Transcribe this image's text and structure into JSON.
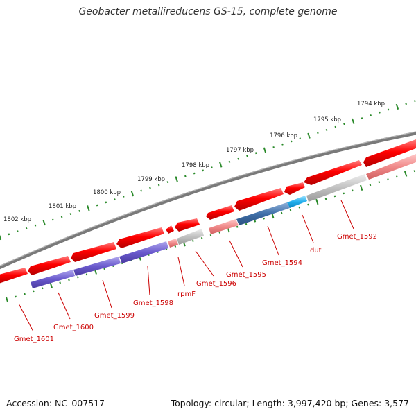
{
  "title": "Geobacter metallireducens GS-15, complete genome",
  "footer": {
    "accession": "Accession: NC_007517",
    "summary": "Topology: circular; Length: 3,997,420 bp; Genes: 3,577"
  },
  "scale_labels": [
    "1794 kbp",
    "1795 kbp",
    "1796 kbp",
    "1797 kbp",
    "1798 kbp",
    "1799 kbp",
    "1800 kbp",
    "1801 kbp",
    "1802 kbp"
  ],
  "gene_labels": [
    "Gmet_1592",
    "dut",
    "Gmet_1594",
    "Gmet_1595",
    "Gmet_1596",
    "rpmF",
    "Gmet_1598",
    "Gmet_1599",
    "Gmet_1600",
    "Gmet_1601"
  ],
  "colors": {
    "cds": "#ff0000",
    "backbone": "#777777",
    "tick": "#2a8a2a",
    "label": "#cc0000",
    "feature_pink": "#f08a8a",
    "feature_grey": "#c0c0c0",
    "feature_blue": "#3f6fa8",
    "feature_cyan": "#22b0ee",
    "feature_purple": "#6a5acd"
  }
}
